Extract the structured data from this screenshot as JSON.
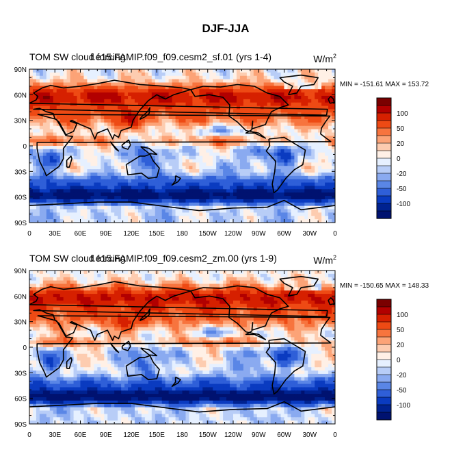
{
  "figure_title": "DJF-JJA",
  "chart_data": [
    {
      "type": "heatmap",
      "title_left": "TOM SW cloud forcing",
      "title_case": "f.e15.FAMIP.f09_f09.cesm2_sf.01 (yrs 1-4)",
      "units": "W/m",
      "units_exp": "2",
      "stats": "MIN = -151.61 MAX = 153.72",
      "min": -151.61,
      "max": 153.72,
      "x_ticks": [
        "0",
        "30E",
        "60E",
        "90E",
        "120E",
        "150E",
        "180",
        "150W",
        "120W",
        "90W",
        "60W",
        "30W",
        "0"
      ],
      "y_ticks": [
        "90N",
        "60N",
        "30N",
        "0",
        "30S",
        "60S",
        "90S"
      ],
      "xlim": [
        0,
        360
      ],
      "ylim": [
        -90,
        90
      ],
      "colorbar_labels": [
        "100",
        "50",
        "20",
        "0",
        "-20",
        "-50",
        "-100"
      ],
      "variant": 0
    },
    {
      "type": "heatmap",
      "title_left": "TOM SW cloud forcing",
      "title_case": "f.e15.FAMIP.f09_f09.cesm2_zm.00 (yrs 1-9)",
      "units": "W/m",
      "units_exp": "2",
      "stats": "MIN = -150.65 MAX = 148.33",
      "min": -150.65,
      "max": 148.33,
      "x_ticks": [
        "0",
        "30E",
        "60E",
        "90E",
        "120E",
        "150E",
        "180",
        "150W",
        "120W",
        "90W",
        "60W",
        "30W",
        "0"
      ],
      "y_ticks": [
        "90N",
        "60N",
        "30N",
        "0",
        "30S",
        "60S",
        "90S"
      ],
      "xlim": [
        0,
        360
      ],
      "ylim": [
        -90,
        90
      ],
      "colorbar_labels": [
        "100",
        "50",
        "20",
        "0",
        "-20",
        "-50",
        "-100"
      ],
      "variant": 1
    }
  ],
  "colorbar_colors": [
    "#7a0000",
    "#b20000",
    "#d62000",
    "#ee4a14",
    "#f7743e",
    "#fca377",
    "#fdccb0",
    "#fff0e6",
    "#e6f0ff",
    "#b8cdf7",
    "#8aaaf0",
    "#5a86e6",
    "#2f5fd8",
    "#0a3bc0",
    "#002290",
    "#001270"
  ]
}
